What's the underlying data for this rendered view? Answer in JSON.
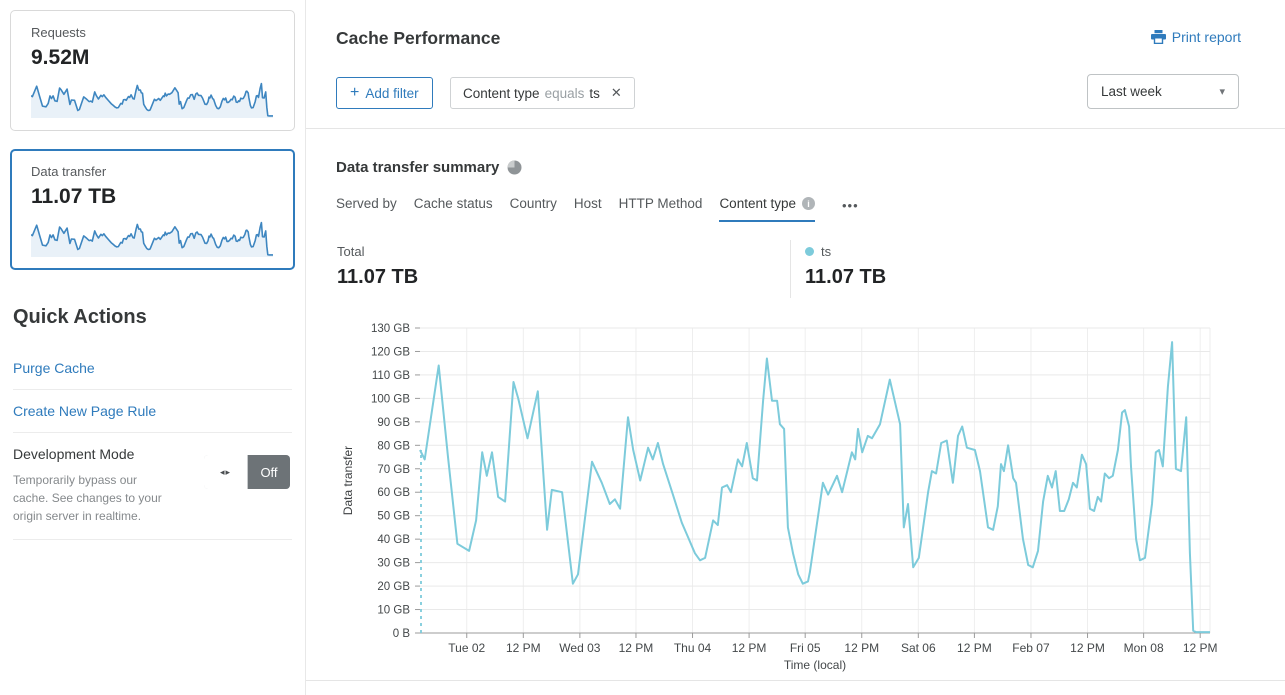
{
  "colors": {
    "accent_blue": "#2f7bbc",
    "chart_line": "#7dcbdb",
    "spark_line": "#3e86c0",
    "spark_fill": "#e9f1f8",
    "toggle_off_bg": "#6d7377"
  },
  "sidebar": {
    "cards": [
      {
        "label": "Requests",
        "value": "9.52M",
        "selected": false
      },
      {
        "label": "Data transfer",
        "value": "11.07 TB",
        "selected": true
      }
    ],
    "quick_actions": {
      "title": "Quick Actions",
      "links": [
        "Purge Cache",
        "Create New Page Rule"
      ],
      "dev_mode": {
        "label": "Development Mode",
        "description": "Temporarily bypass our cache. See changes to your origin server in realtime.",
        "toggle_state": "Off",
        "toggle_icon": "◂▸"
      }
    }
  },
  "header": {
    "title": "Cache Performance",
    "print_label": "Print report",
    "add_filter": {
      "plus": "+",
      "label": "Add filter"
    },
    "filter_chip": {
      "field": "Content type",
      "operator": "equals",
      "value": "ts",
      "close": "✕"
    },
    "range_select": {
      "value": "Last week",
      "caret": "▾"
    }
  },
  "summary": {
    "title": "Data transfer summary",
    "tabs": [
      {
        "label": "Served by",
        "active": false
      },
      {
        "label": "Cache status",
        "active": false
      },
      {
        "label": "Country",
        "active": false
      },
      {
        "label": "Host",
        "active": false
      },
      {
        "label": "HTTP Method",
        "active": false
      },
      {
        "label": "Content type",
        "active": true,
        "info": "i"
      }
    ],
    "overflow": "•••",
    "total_label": "Total",
    "total_value": "11.07 TB",
    "legend": [
      {
        "name": "ts",
        "value": "11.07 TB",
        "color": "#7dcbdb"
      }
    ]
  },
  "chart_data": {
    "type": "line",
    "title": "Data transfer summary",
    "xlabel": "Time (local)",
    "ylabel": "Data transfer",
    "ylim": [
      0,
      130
    ],
    "y_unit": "GB",
    "grid": true,
    "start_dashed": true,
    "y_ticks": [
      "0 B",
      "10 GB",
      "20 GB",
      "30 GB",
      "40 GB",
      "50 GB",
      "60 GB",
      "70 GB",
      "80 GB",
      "90 GB",
      "100 GB",
      "110 GB",
      "120 GB",
      "130 GB"
    ],
    "x_span_hours": 169,
    "x_ticks": [
      {
        "hour": 10.0,
        "label": "Tue 02"
      },
      {
        "hour": 22.1,
        "label": "12 PM"
      },
      {
        "hour": 34.2,
        "label": "Wed 03"
      },
      {
        "hour": 46.2,
        "label": "12 PM"
      },
      {
        "hour": 58.3,
        "label": "Thu 04"
      },
      {
        "hour": 70.4,
        "label": "12 PM"
      },
      {
        "hour": 82.4,
        "label": "Fri 05"
      },
      {
        "hour": 94.5,
        "label": "12 PM"
      },
      {
        "hour": 106.6,
        "label": "Sat 06"
      },
      {
        "hour": 118.6,
        "label": "12 PM"
      },
      {
        "hour": 130.7,
        "label": "Feb 07"
      },
      {
        "hour": 142.8,
        "label": "12 PM"
      },
      {
        "hour": 154.8,
        "label": "Mon 08"
      },
      {
        "hour": 166.9,
        "label": "12 PM"
      }
    ],
    "series": [
      {
        "name": "ts",
        "color": "#7dcbdb",
        "points": [
          [
            0,
            78
          ],
          [
            1,
            74
          ],
          [
            4,
            114
          ],
          [
            6,
            75
          ],
          [
            8,
            38
          ],
          [
            10.5,
            35
          ],
          [
            12,
            48
          ],
          [
            13.3,
            77
          ],
          [
            14.3,
            67
          ],
          [
            15.4,
            77
          ],
          [
            16.7,
            58
          ],
          [
            18.2,
            56
          ],
          [
            20,
            107
          ],
          [
            21,
            100
          ],
          [
            23,
            83
          ],
          [
            25.2,
            103
          ],
          [
            27.2,
            44
          ],
          [
            28.2,
            61
          ],
          [
            30.4,
            60
          ],
          [
            32.7,
            21
          ],
          [
            33.8,
            25
          ],
          [
            36.8,
            73
          ],
          [
            38.9,
            64
          ],
          [
            40.6,
            55
          ],
          [
            41.7,
            57
          ],
          [
            42.8,
            53
          ],
          [
            44.5,
            92
          ],
          [
            45.6,
            78
          ],
          [
            47.1,
            65
          ],
          [
            48.8,
            79
          ],
          [
            49.8,
            74
          ],
          [
            50.9,
            81
          ],
          [
            52,
            72
          ],
          [
            54.1,
            59
          ],
          [
            56,
            47
          ],
          [
            57.1,
            42
          ],
          [
            58.8,
            34
          ],
          [
            59.9,
            31
          ],
          [
            61,
            32
          ],
          [
            62.7,
            48
          ],
          [
            63.7,
            46
          ],
          [
            64.6,
            62
          ],
          [
            65.7,
            63
          ],
          [
            66.5,
            60
          ],
          [
            68,
            74
          ],
          [
            68.9,
            71
          ],
          [
            69.9,
            81
          ],
          [
            71.2,
            66
          ],
          [
            72.1,
            65
          ],
          [
            73.4,
            99
          ],
          [
            74.2,
            117
          ],
          [
            75.3,
            99
          ],
          [
            76.4,
            99
          ],
          [
            77,
            89
          ],
          [
            77.9,
            87
          ],
          [
            78.7,
            45
          ],
          [
            79.8,
            34
          ],
          [
            80.9,
            25
          ],
          [
            81.9,
            21
          ],
          [
            83,
            22
          ],
          [
            83.4,
            26
          ],
          [
            86.2,
            64
          ],
          [
            87.3,
            59
          ],
          [
            89.2,
            67
          ],
          [
            90.3,
            60
          ],
          [
            92.4,
            77
          ],
          [
            93.1,
            74
          ],
          [
            93.7,
            87
          ],
          [
            94.6,
            77
          ],
          [
            95.8,
            84
          ],
          [
            96.7,
            83
          ],
          [
            98.4,
            89
          ],
          [
            100.5,
            108
          ],
          [
            102.7,
            89
          ],
          [
            103.5,
            45
          ],
          [
            104.4,
            55
          ],
          [
            105.5,
            28
          ],
          [
            106.7,
            32
          ],
          [
            108.7,
            60
          ],
          [
            109.5,
            69
          ],
          [
            110.4,
            68
          ],
          [
            111.5,
            81
          ],
          [
            112.7,
            82
          ],
          [
            114,
            64
          ],
          [
            115.1,
            84
          ],
          [
            116,
            88
          ],
          [
            117,
            79
          ],
          [
            118.7,
            78
          ],
          [
            119.8,
            69
          ],
          [
            121.5,
            45
          ],
          [
            122.6,
            44
          ],
          [
            123.6,
            54
          ],
          [
            124.3,
            72
          ],
          [
            124.9,
            69
          ],
          [
            125.8,
            80
          ],
          [
            126.9,
            66
          ],
          [
            127.5,
            64
          ],
          [
            129,
            40
          ],
          [
            130.1,
            29
          ],
          [
            131.1,
            28
          ],
          [
            132.2,
            35
          ],
          [
            133.3,
            56
          ],
          [
            134.3,
            67
          ],
          [
            135.2,
            62
          ],
          [
            136,
            69
          ],
          [
            136.9,
            52
          ],
          [
            137.8,
            52
          ],
          [
            138.8,
            57
          ],
          [
            139.7,
            64
          ],
          [
            140.5,
            62
          ],
          [
            141.6,
            76
          ],
          [
            142.5,
            72
          ],
          [
            143.3,
            53
          ],
          [
            144.2,
            52
          ],
          [
            145,
            58
          ],
          [
            145.7,
            56
          ],
          [
            146.5,
            68
          ],
          [
            147.4,
            66
          ],
          [
            148.2,
            67
          ],
          [
            149.3,
            78
          ],
          [
            150.2,
            94
          ],
          [
            150.8,
            95
          ],
          [
            151.7,
            88
          ],
          [
            152.1,
            71
          ],
          [
            153.2,
            40
          ],
          [
            154,
            31
          ],
          [
            155.1,
            32
          ],
          [
            156.6,
            55
          ],
          [
            157.4,
            77
          ],
          [
            158.1,
            78
          ],
          [
            158.9,
            71
          ],
          [
            160,
            105
          ],
          [
            160.9,
            124
          ],
          [
            161.7,
            70
          ],
          [
            162.8,
            69
          ],
          [
            163.9,
            92
          ],
          [
            164.7,
            34
          ],
          [
            165.4,
            1
          ],
          [
            166,
            0.4
          ],
          [
            169,
            0.4
          ]
        ]
      }
    ]
  }
}
